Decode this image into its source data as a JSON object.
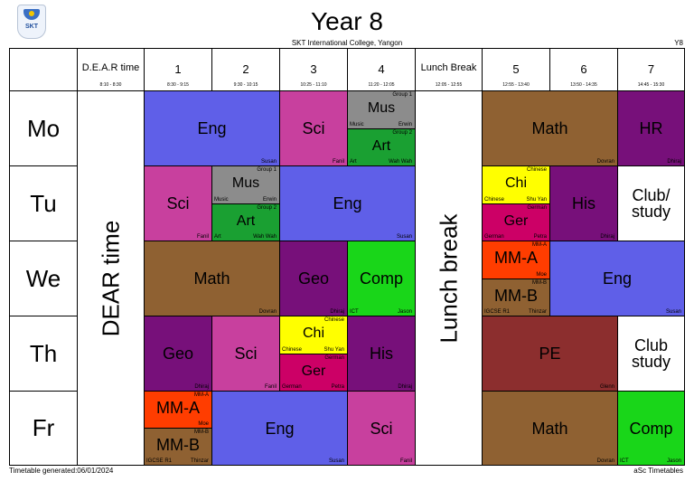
{
  "header": {
    "title": "Year 8",
    "subtitle": "SKT International College, Yangon",
    "class_code": "Y8",
    "logo_text": "SKT"
  },
  "footer": {
    "generated": "Timetable generated:06/01/2024",
    "brand": "aSc Timetables"
  },
  "periods": [
    {
      "name": "D.E.A.R time",
      "time": "8:10 - 8:30"
    },
    {
      "name": "1",
      "time": "8:30 - 9:15"
    },
    {
      "name": "2",
      "time": "9:30 - 10:15"
    },
    {
      "name": "3",
      "time": "10:25 - 11:10"
    },
    {
      "name": "4",
      "time": "11:20 - 12:05"
    },
    {
      "name": "Lunch Break",
      "time": "12:05 - 12:55"
    },
    {
      "name": "5",
      "time": "12:55 - 13:40"
    },
    {
      "name": "6",
      "time": "13:50 - 14:35"
    },
    {
      "name": "7",
      "time": "14:45 - 15:30"
    }
  ],
  "days": [
    "Mo",
    "Tu",
    "We",
    "Th",
    "Fr"
  ],
  "dear_label": "DEAR time",
  "lunch_label": "Lunch break",
  "lessons": {
    "mo_eng": {
      "subject": "Eng",
      "teacher": "Susan"
    },
    "mo_sci": {
      "subject": "Sci",
      "teacher": "Fanil"
    },
    "mo_mus": {
      "subject": "Mus",
      "group": "Group 1",
      "room": "Music",
      "teacher": "Erwin"
    },
    "mo_art": {
      "subject": "Art",
      "group": "Group 2",
      "room": "Art",
      "teacher": "Wah Wah"
    },
    "mo_math": {
      "subject": "Math",
      "teacher": "Dovran"
    },
    "mo_hr": {
      "subject": "HR",
      "teacher": "Dhiraj"
    },
    "tu_sci": {
      "subject": "Sci",
      "teacher": "Fanil"
    },
    "tu_mus": {
      "subject": "Mus",
      "group": "Group 1",
      "room": "Music",
      "teacher": "Erwin"
    },
    "tu_art": {
      "subject": "Art",
      "group": "Group 2",
      "room": "Art",
      "teacher": "Wah Wah"
    },
    "tu_eng": {
      "subject": "Eng",
      "teacher": "Susan"
    },
    "tu_chi": {
      "subject": "Chi",
      "group": "Chinese",
      "room": "Chinese",
      "teacher": "Shu Yan"
    },
    "tu_ger": {
      "subject": "Ger",
      "group": "German",
      "room": "German",
      "teacher": "Petra"
    },
    "tu_his": {
      "subject": "His",
      "teacher": "Dhiraj"
    },
    "tu_club": {
      "subject": "Club/ study"
    },
    "we_math": {
      "subject": "Math",
      "teacher": "Dovran"
    },
    "we_geo": {
      "subject": "Geo",
      "teacher": "Dhiraj"
    },
    "we_comp": {
      "subject": "Comp",
      "room": "ICT",
      "teacher": "Jason"
    },
    "we_mma": {
      "subject": "MM-A",
      "group": "MM-A",
      "teacher": "Moe"
    },
    "we_mmb": {
      "subject": "MM-B",
      "group": "MM-B",
      "room": "IGCSE R1",
      "teacher": "Thinzar"
    },
    "we_eng": {
      "subject": "Eng",
      "teacher": "Susan"
    },
    "th_geo": {
      "subject": "Geo",
      "teacher": "Dhiraj"
    },
    "th_sci": {
      "subject": "Sci",
      "teacher": "Fanil"
    },
    "th_chi": {
      "subject": "Chi",
      "group": "Chinese",
      "room": "Chinese",
      "teacher": "Shu Yan"
    },
    "th_ger": {
      "subject": "Ger",
      "group": "German",
      "room": "German",
      "teacher": "Petra"
    },
    "th_his": {
      "subject": "His",
      "teacher": "Dhiraj"
    },
    "th_pe": {
      "subject": "PE",
      "teacher": "Glenn"
    },
    "th_club": {
      "subject": "Club study"
    },
    "fr_mma": {
      "subject": "MM-A",
      "group": "MM-A",
      "teacher": "Moe"
    },
    "fr_mmb": {
      "subject": "MM-B",
      "group": "MM-B",
      "room": "IGCSE R1",
      "teacher": "Thinzar"
    },
    "fr_eng": {
      "subject": "Eng",
      "teacher": "Susan"
    },
    "fr_sci": {
      "subject": "Sci",
      "teacher": "Fanil"
    },
    "fr_math": {
      "subject": "Math",
      "teacher": "Dovran"
    },
    "fr_comp": {
      "subject": "Comp",
      "room": "ICT",
      "teacher": "Jason"
    }
  }
}
